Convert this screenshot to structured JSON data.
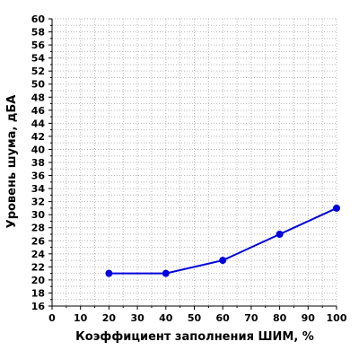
{
  "chart_data": {
    "type": "line",
    "title": "",
    "xlabel": "Коэффициент заполнения ШИМ, %",
    "ylabel": "Уровень шума, дБА",
    "xlim": [
      0,
      100
    ],
    "ylim": [
      16,
      60
    ],
    "x_ticks": [
      "0",
      "10",
      "20",
      "30",
      "40",
      "50",
      "60",
      "70",
      "80",
      "90",
      "100"
    ],
    "y_ticks": [
      "16",
      "18",
      "20",
      "22",
      "24",
      "26",
      "28",
      "30",
      "32",
      "34",
      "36",
      "38",
      "40",
      "42",
      "44",
      "46",
      "48",
      "50",
      "52",
      "54",
      "56",
      "58",
      "60"
    ],
    "grid": true,
    "series": [
      {
        "color": "#0000dd",
        "x": [
          20,
          40,
          60,
          80,
          100
        ],
        "y": [
          21,
          21,
          23,
          27,
          31
        ]
      }
    ]
  }
}
